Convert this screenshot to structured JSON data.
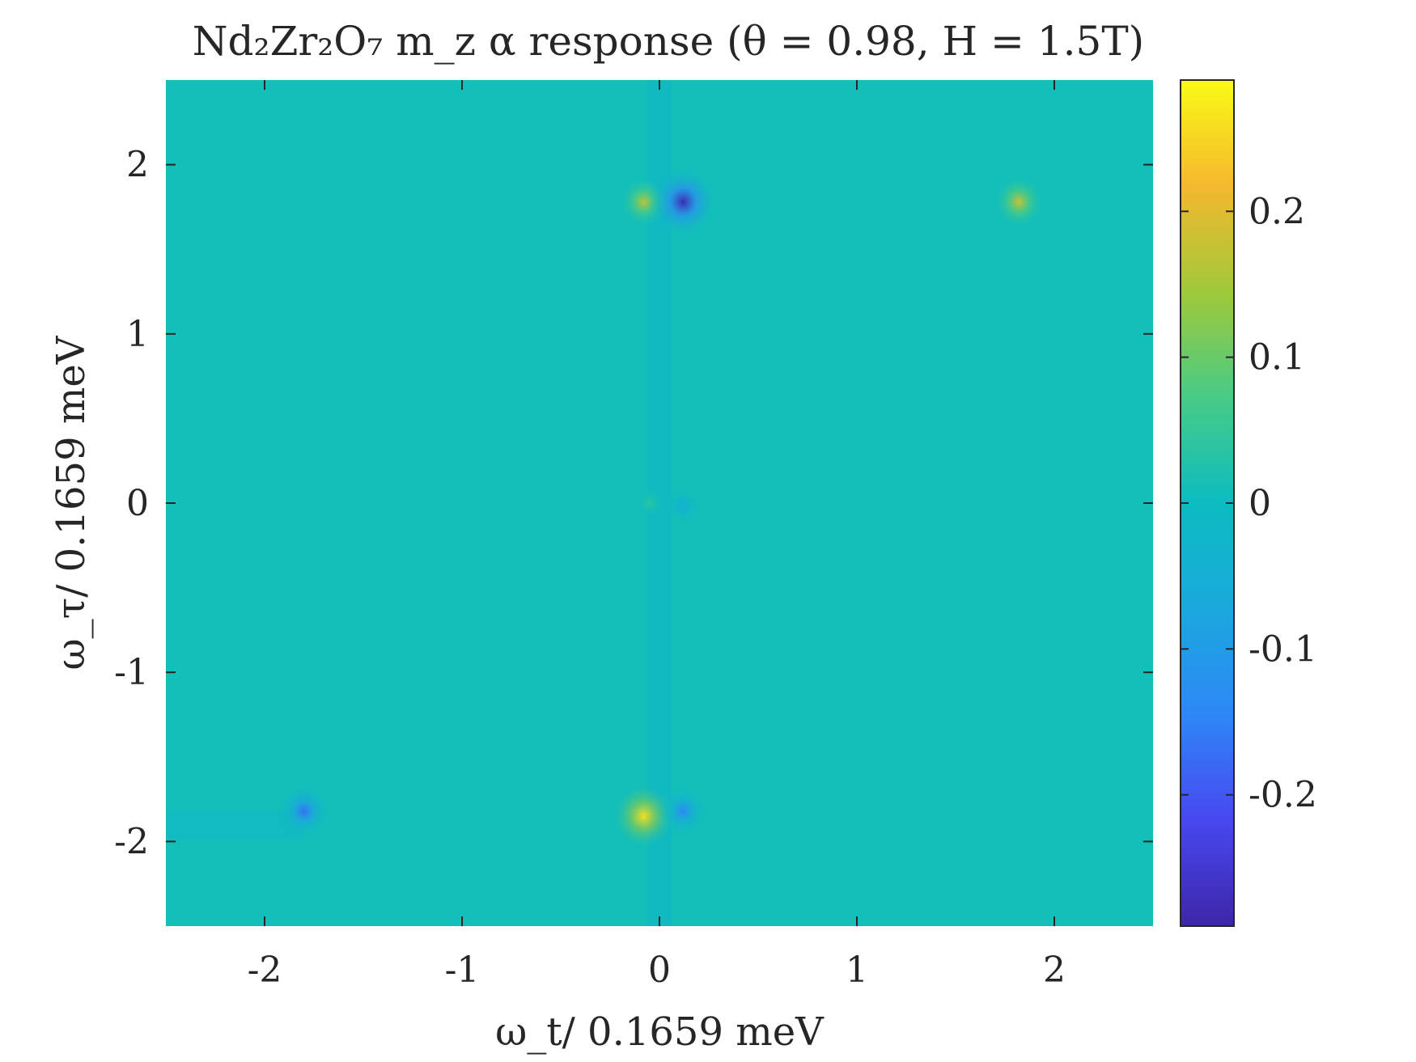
{
  "chart_data": {
    "type": "heatmap",
    "title": "Nd₂Zr₂O₇ m_z α response (θ = 0.98, H = 1.5T)",
    "xlabel": "ω_t/ 0.1659 meV",
    "ylabel": "ω_τ/ 0.1659 meV",
    "x_range": [
      -2.5,
      2.5
    ],
    "y_range": [
      -2.5,
      2.5
    ],
    "x_ticks": [
      -2,
      -1,
      0,
      1,
      2
    ],
    "x_tick_labels": [
      "-2",
      "-1",
      "0",
      "1",
      "2"
    ],
    "y_ticks": [
      -2,
      -1,
      0,
      1,
      2
    ],
    "y_tick_labels": [
      "-2",
      "-1",
      "0",
      "1",
      "2"
    ],
    "colorbar": {
      "range": [
        -0.29,
        0.29
      ],
      "ticks": [
        -0.2,
        -0.1,
        0,
        0.1,
        0.2
      ],
      "tick_labels": [
        "-0.2",
        "-0.1",
        "0",
        "0.1",
        "0.2"
      ],
      "colormap": "parula"
    },
    "background_value": 0.0,
    "features": [
      {
        "kind": "peak",
        "x": -0.08,
        "y": 1.78,
        "value": 0.17
      },
      {
        "kind": "peak",
        "x": 0.12,
        "y": 1.78,
        "value": -0.28
      },
      {
        "kind": "peak",
        "x": 1.82,
        "y": 1.78,
        "value": 0.18
      },
      {
        "kind": "peak",
        "x": -0.05,
        "y": 0.0,
        "value": 0.04
      },
      {
        "kind": "peak",
        "x": 0.12,
        "y": -0.02,
        "value": -0.05
      },
      {
        "kind": "peak",
        "x": -1.8,
        "y": -1.82,
        "value": -0.17
      },
      {
        "kind": "peak",
        "x": -0.08,
        "y": -1.85,
        "value": 0.26
      },
      {
        "kind": "peak",
        "x": 0.12,
        "y": -1.82,
        "value": -0.14
      },
      {
        "kind": "band",
        "orientation": "vertical",
        "x": 0.0,
        "value": -0.02
      },
      {
        "kind": "band",
        "orientation": "horizontal",
        "y": -1.9,
        "value": -0.02
      }
    ]
  }
}
